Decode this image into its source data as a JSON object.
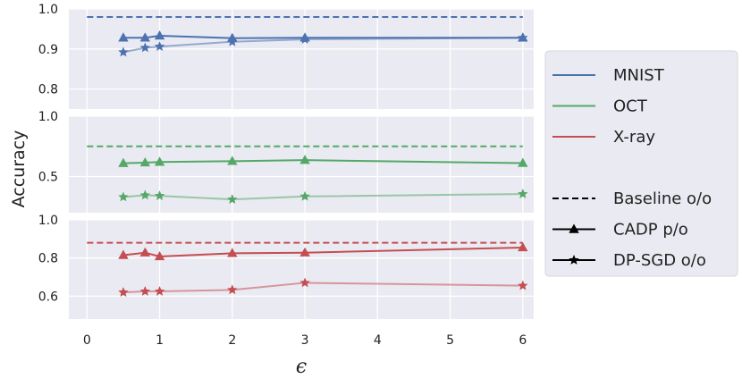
{
  "chart_data": {
    "type": "line",
    "ylabel": "Accuracy",
    "xlabel": "ϵ",
    "x_ticks": [
      "0",
      "1",
      "2",
      "3",
      "4",
      "5",
      "6"
    ],
    "xlim": [
      -0.25,
      6.15
    ],
    "grid": true,
    "legend_position": "right",
    "legend": [
      {
        "label": "MNIST",
        "color": "#4c72b0",
        "style": "line"
      },
      {
        "label": "OCT",
        "color": "#55a868",
        "style": "line"
      },
      {
        "label": "X-ray",
        "color": "#c44e52",
        "style": "line"
      },
      {
        "label": "",
        "color": "",
        "style": "blank"
      },
      {
        "label": "Baseline o/o",
        "color": "#000000",
        "style": "dashed"
      },
      {
        "label": "CADP p/o",
        "color": "#000000",
        "style": "triangle"
      },
      {
        "label": "DP-SGD o/o",
        "color": "#000000",
        "style": "star"
      }
    ],
    "panels": [
      {
        "dataset": "MNIST",
        "color": "#4c72b0",
        "ylim": [
          0.75,
          1.0
        ],
        "yticks": [
          "0.8",
          "0.9",
          "1.0"
        ],
        "ytick_values": [
          0.8,
          0.9,
          1.0
        ],
        "baseline": {
          "x": [
            0,
            6
          ],
          "y": [
            0.98,
            0.98
          ]
        },
        "series": [
          {
            "marker": "triangle",
            "x": [
              0.5,
              0.8,
              1,
              2,
              3,
              6
            ],
            "y": [
              0.928,
              0.928,
              0.933,
              0.927,
              0.928,
              0.928
            ]
          },
          {
            "marker": "star",
            "x": [
              0.5,
              0.8,
              1,
              2,
              3,
              6
            ],
            "y": [
              0.892,
              0.903,
              0.906,
              0.918,
              0.924,
              0.928
            ]
          }
        ]
      },
      {
        "dataset": "OCT",
        "color": "#55a868",
        "ylim": [
          0.2,
          1.0
        ],
        "yticks": [
          "0.5",
          "1.0"
        ],
        "ytick_values": [
          0.5,
          1.0
        ],
        "baseline": {
          "x": [
            0,
            6
          ],
          "y": [
            0.75,
            0.75
          ]
        },
        "series": [
          {
            "marker": "triangle",
            "x": [
              0.5,
              0.8,
              1,
              2,
              3,
              6
            ],
            "y": [
              0.61,
              0.615,
              0.62,
              0.627,
              0.636,
              0.611
            ]
          },
          {
            "marker": "star",
            "x": [
              0.5,
              0.8,
              1,
              2,
              3,
              6
            ],
            "y": [
              0.33,
              0.345,
              0.34,
              0.31,
              0.335,
              0.355
            ]
          }
        ]
      },
      {
        "dataset": "X-ray",
        "color": "#c44e52",
        "ylim": [
          0.48,
          1.0
        ],
        "yticks": [
          "0.6",
          "0.8",
          "1.0"
        ],
        "ytick_values": [
          0.6,
          0.8,
          1.0
        ],
        "baseline": {
          "x": [
            0,
            6
          ],
          "y": [
            0.88,
            0.88
          ]
        },
        "series": [
          {
            "marker": "triangle",
            "x": [
              0.5,
              0.8,
              1,
              2,
              3,
              6
            ],
            "y": [
              0.815,
              0.828,
              0.808,
              0.825,
              0.828,
              0.855
            ]
          },
          {
            "marker": "star",
            "x": [
              0.5,
              0.8,
              1,
              2,
              3,
              6
            ],
            "y": [
              0.62,
              0.625,
              0.625,
              0.633,
              0.67,
              0.655
            ]
          }
        ]
      }
    ]
  }
}
